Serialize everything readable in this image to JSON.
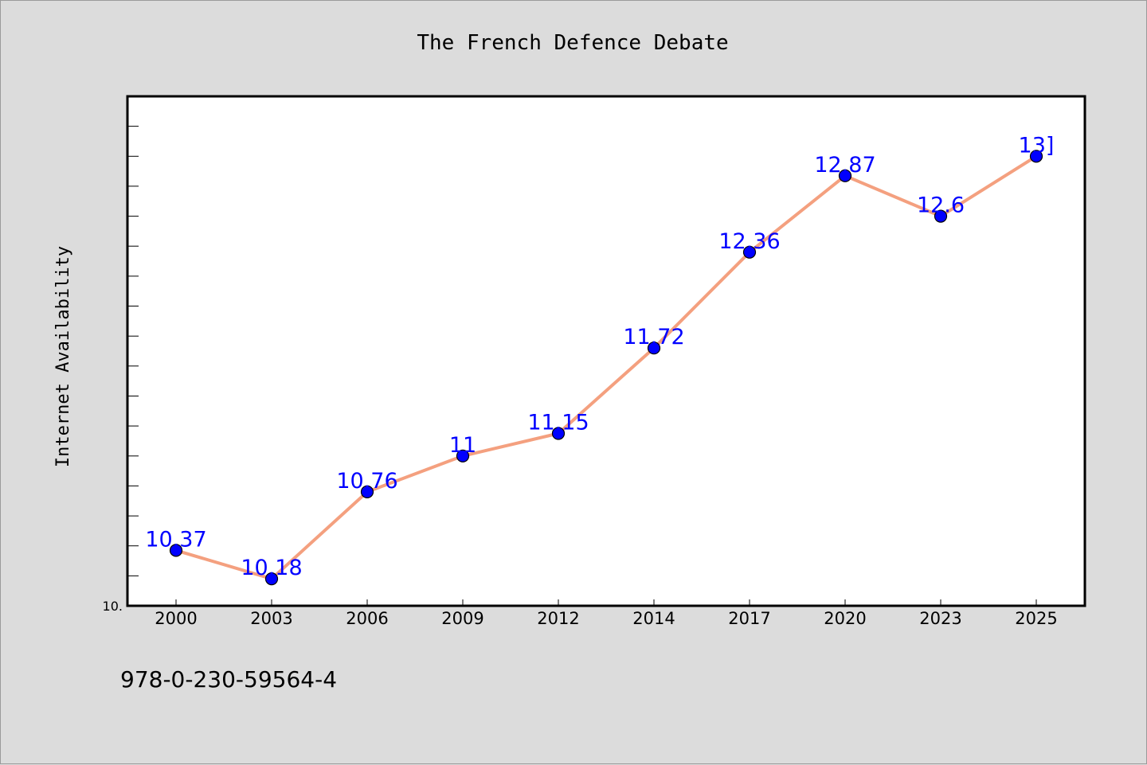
{
  "chart_data": {
    "type": "line",
    "title": "The French Defence Debate",
    "xlabel": "",
    "ylabel": "Internet Availability",
    "categories": [
      "2000",
      "2003",
      "2006",
      "2009",
      "2012",
      "2014",
      "2017",
      "2020",
      "2023",
      "2025"
    ],
    "series": [
      {
        "values": [
          10.37,
          10.18,
          10.76,
          11,
          11.15,
          11.72,
          12.36,
          12.87,
          12.6,
          13
        ]
      }
    ],
    "data_labels": [
      "10.37",
      "10.18",
      "10.76",
      "11",
      "11.15",
      "11.72",
      "12.36",
      "12.87",
      "12.6",
      "13]"
    ],
    "y_tick_label": "10.",
    "ylim": [
      10,
      13.4
    ],
    "grid": false,
    "legend": "none",
    "footer_text": "978-0-230-59564-4",
    "colors": {
      "line": "#f4a07f",
      "marker": "#0000ff",
      "marker_edge": "#000000",
      "data_label": "#0000ff",
      "plot_bg": "#ffffff",
      "page_bg": "#dcdcdc"
    }
  }
}
